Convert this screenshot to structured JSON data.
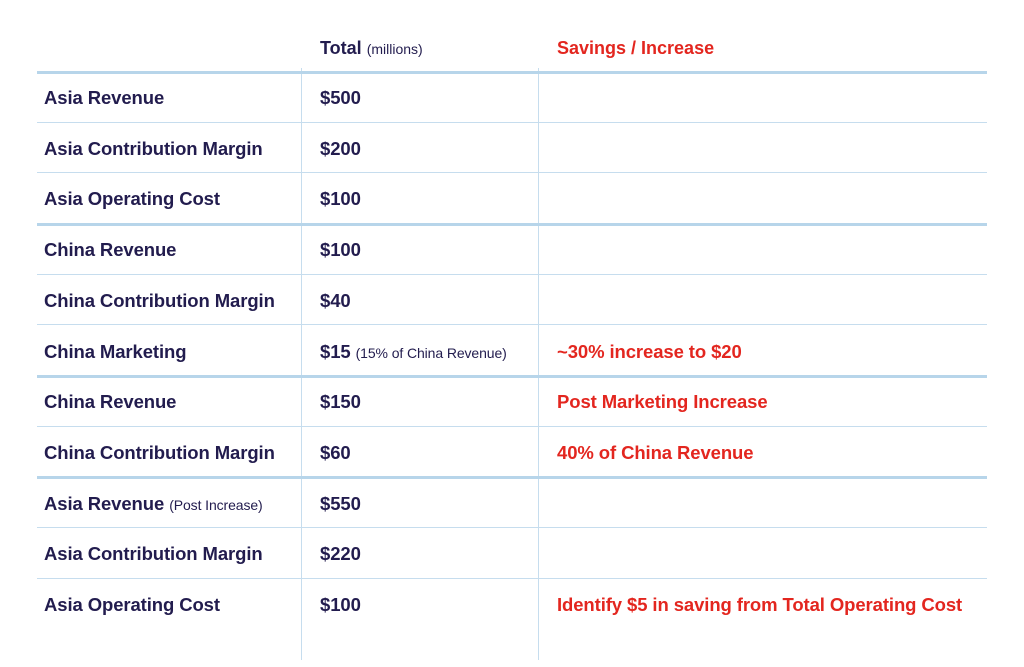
{
  "header": {
    "total_label": "Total",
    "total_note": "(millions)",
    "remark_label": "Savings / Increase"
  },
  "colors": {
    "text": "#221c4e",
    "accent": "#e3261f",
    "rule": "#b7d5ea"
  },
  "rows": [
    {
      "label": "Asia Revenue",
      "label_note": "",
      "value": "$500",
      "value_note": "",
      "remark": ""
    },
    {
      "label": "Asia Contribution Margin",
      "label_note": "",
      "value": "$200",
      "value_note": "",
      "remark": ""
    },
    {
      "label": "Asia Operating Cost",
      "label_note": "",
      "value": "$100",
      "value_note": "",
      "remark": ""
    },
    {
      "label": "China Revenue",
      "label_note": "",
      "value": "$100",
      "value_note": "",
      "remark": ""
    },
    {
      "label": "China Contribution Margin",
      "label_note": "",
      "value": "$40",
      "value_note": "",
      "remark": ""
    },
    {
      "label": "China Marketing",
      "label_note": "",
      "value": "$15",
      "value_note": "(15% of China Revenue)",
      "remark": "~30% increase to $20"
    },
    {
      "label": "China Revenue",
      "label_note": "",
      "value": "$150",
      "value_note": "",
      "remark": "Post Marketing Increase"
    },
    {
      "label": "China Contribution Margin",
      "label_note": "",
      "value": "$60",
      "value_note": "",
      "remark": "40% of China Revenue"
    },
    {
      "label": "Asia Revenue",
      "label_note": "(Post Increase)",
      "value": "$550",
      "value_note": "",
      "remark": ""
    },
    {
      "label": "Asia Contribution Margin",
      "label_note": "",
      "value": "$220",
      "value_note": "",
      "remark": ""
    },
    {
      "label": "Asia Operating Cost",
      "label_note": "",
      "value": "$100",
      "value_note": "",
      "remark": "Identify $5 in saving from Total Operating Cost"
    }
  ],
  "group_starts": [
    0,
    3,
    6,
    8
  ]
}
